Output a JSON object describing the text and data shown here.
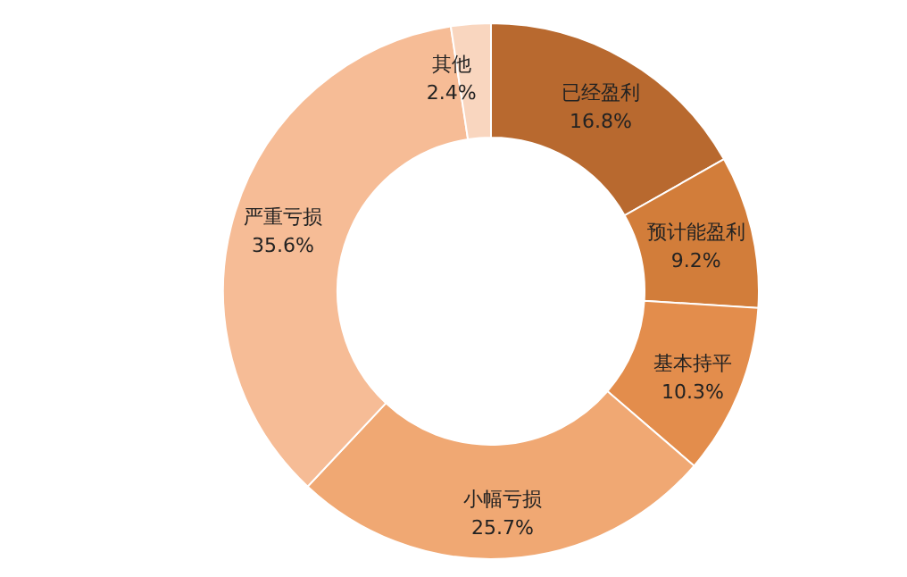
{
  "chart_data": {
    "type": "donut",
    "categories": [
      "已经盈利",
      "预计能盈利",
      "基本持平",
      "小幅亏损",
      "严重亏损",
      "其他"
    ],
    "values": [
      16.8,
      9.2,
      10.3,
      25.7,
      35.6,
      2.4
    ],
    "value_labels": [
      "16.8%",
      "9.2%",
      "10.3%",
      "25.7%",
      "35.6%",
      "2.4%"
    ],
    "colors": [
      "#b8692f",
      "#d27d3a",
      "#e38d4c",
      "#f0a873",
      "#f6bc96",
      "#f9d6bf"
    ],
    "legend": false
  }
}
